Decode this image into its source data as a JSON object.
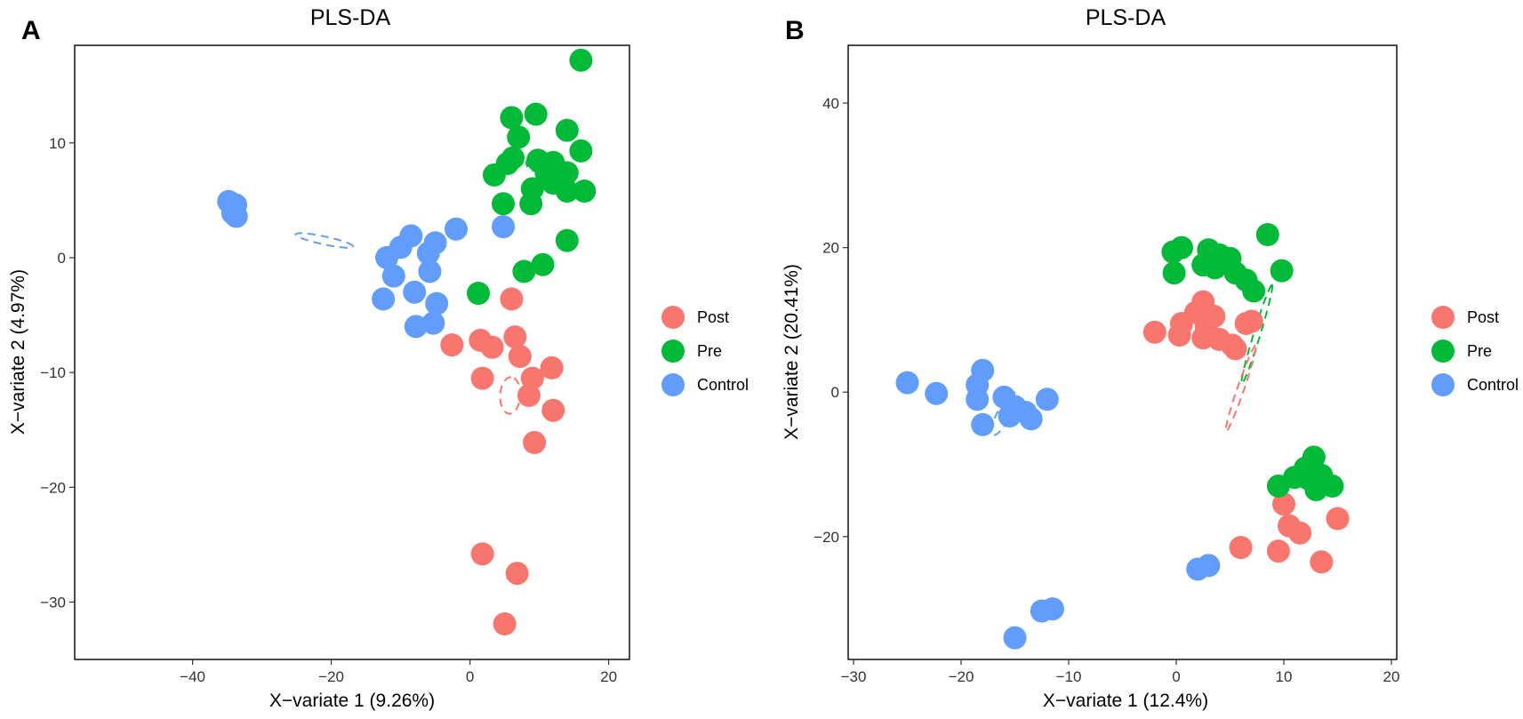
{
  "chart_data": [
    {
      "panel": "A",
      "type": "scatter",
      "title": "PLS-DA",
      "xlabel": "X−variate 1 (9.26%)",
      "ylabel": "X−variate 2 (4.97%)",
      "xlim": [
        -57,
        23
      ],
      "ylim": [
        -35,
        18.5
      ],
      "xticks": [
        -40,
        -20,
        0,
        20
      ],
      "yticks": [
        -30,
        -20,
        -10,
        0,
        10
      ],
      "grid": false,
      "legend_position": "right",
      "series": [
        {
          "name": "Post",
          "color": "#F8766D",
          "points": [
            [
              6,
              -3.6
            ],
            [
              -2.6,
              -7.6
            ],
            [
              1.5,
              -7.2
            ],
            [
              3.2,
              -7.8
            ],
            [
              6.5,
              -6.9
            ],
            [
              7.2,
              -8.6
            ],
            [
              11.8,
              -9.6
            ],
            [
              9,
              -10.5
            ],
            [
              1.8,
              -10.5
            ],
            [
              8.5,
              -12
            ],
            [
              12,
              -13.3
            ],
            [
              9.3,
              -16.1
            ],
            [
              1.8,
              -25.8
            ],
            [
              6.8,
              -27.5
            ],
            [
              5,
              -31.9
            ]
          ]
        },
        {
          "name": "Pre",
          "color": "#00BA38",
          "points": [
            [
              16,
              17.2
            ],
            [
              6,
              12.2
            ],
            [
              9.5,
              12.5
            ],
            [
              14,
              11.1
            ],
            [
              7,
              10.5
            ],
            [
              6.2,
              8.7
            ],
            [
              5.4,
              8.2
            ],
            [
              9.8,
              8.5
            ],
            [
              12,
              8.3
            ],
            [
              16,
              9.3
            ],
            [
              14,
              7.4
            ],
            [
              3.5,
              7.2
            ],
            [
              11,
              7.4
            ],
            [
              12,
              6.5
            ],
            [
              9,
              6
            ],
            [
              14,
              5.8
            ],
            [
              16.5,
              5.8
            ],
            [
              4.8,
              4.7
            ],
            [
              8.8,
              4.7
            ],
            [
              14,
              1.5
            ],
            [
              10.5,
              -0.6
            ],
            [
              7.8,
              -1.2
            ],
            [
              1.2,
              -3.1
            ]
          ]
        },
        {
          "name": "Control",
          "color": "#619CFF",
          "points": [
            [
              -34.8,
              4.9
            ],
            [
              -33.8,
              4.6
            ],
            [
              -34.2,
              3.9
            ],
            [
              -33.7,
              3.6
            ],
            [
              -2,
              2.5
            ],
            [
              4.8,
              2.7
            ],
            [
              -8.5,
              1.9
            ],
            [
              -5,
              1.3
            ],
            [
              -10,
              0.9
            ],
            [
              -6,
              0.4
            ],
            [
              -12,
              0
            ],
            [
              -5.8,
              -1.2
            ],
            [
              -11,
              -1.6
            ],
            [
              -8,
              -3
            ],
            [
              -12.5,
              -3.6
            ],
            [
              -4.8,
              -4
            ],
            [
              -5.3,
              -5.7
            ],
            [
              -7.8,
              -6
            ]
          ]
        }
      ],
      "ellipses": [
        {
          "series": "Control",
          "cx": -21,
          "cy": 1.5,
          "rx": 33,
          "ry": 4.5,
          "angle_deg": -12
        },
        {
          "series": "Pre",
          "cx": 10,
          "cy": 8.3,
          "rx": 10.2,
          "ry": 14.6,
          "angle_deg": 95
        },
        {
          "series": "Post",
          "cx": 5.8,
          "cy": -12,
          "rx": 20.6,
          "ry": 11.3,
          "angle_deg": 87
        }
      ]
    },
    {
      "panel": "B",
      "type": "scatter",
      "title": "PLS-DA",
      "xlabel": "X−variate 1 (12.4%)",
      "ylabel": "X−variate 2 (20.41%)",
      "xlim": [
        -30.5,
        20.5
      ],
      "ylim": [
        -37,
        48
      ],
      "xticks": [
        -30,
        -20,
        -10,
        0,
        10,
        20
      ],
      "yticks": [
        -20,
        0,
        20,
        40
      ],
      "grid": false,
      "legend_position": "right",
      "series": [
        {
          "name": "Post",
          "color": "#F8766D",
          "points": [
            [
              2.5,
              12.5
            ],
            [
              1.8,
              11
            ],
            [
              3.5,
              10.5
            ],
            [
              0.5,
              9.5
            ],
            [
              6.5,
              9.5
            ],
            [
              7,
              9.8
            ],
            [
              2.8,
              9
            ],
            [
              -2,
              8.3
            ],
            [
              0.3,
              7.9
            ],
            [
              2.5,
              7.5
            ],
            [
              4,
              7.3
            ],
            [
              5.2,
              6.5
            ],
            [
              5.5,
              6
            ],
            [
              10,
              -15.5
            ],
            [
              15,
              -17.5
            ],
            [
              10.5,
              -18.5
            ],
            [
              11.5,
              -19.5
            ],
            [
              6,
              -21.5
            ],
            [
              9.5,
              -22
            ],
            [
              13.5,
              -23.5
            ]
          ]
        },
        {
          "name": "Pre",
          "color": "#00BA38",
          "points": [
            [
              8.5,
              21.8
            ],
            [
              0.5,
              20
            ],
            [
              -0.3,
              19.4
            ],
            [
              3,
              19.7
            ],
            [
              4,
              19
            ],
            [
              5,
              18.5
            ],
            [
              2.5,
              17.6
            ],
            [
              3.6,
              17.2
            ],
            [
              9.8,
              16.8
            ],
            [
              -0.2,
              16.5
            ],
            [
              5.5,
              16.5
            ],
            [
              6.5,
              15.5
            ],
            [
              7.2,
              14
            ],
            [
              12.8,
              -9
            ],
            [
              12,
              -10.5
            ],
            [
              13.5,
              -11.5
            ],
            [
              11,
              -11.8
            ],
            [
              12.3,
              -12
            ],
            [
              9.5,
              -13
            ],
            [
              14.5,
              -13
            ],
            [
              13,
              -13.5
            ]
          ]
        },
        {
          "name": "Control",
          "color": "#619CFF",
          "points": [
            [
              -18,
              3
            ],
            [
              -25,
              1.3
            ],
            [
              -18.5,
              1
            ],
            [
              -22.3,
              -0.2
            ],
            [
              -16,
              -0.7
            ],
            [
              -12,
              -1
            ],
            [
              -18.5,
              -1
            ],
            [
              -15,
              -2
            ],
            [
              -14,
              -2.8
            ],
            [
              -15.5,
              -3.3
            ],
            [
              -13.5,
              -3.7
            ],
            [
              -18,
              -4.5
            ],
            [
              3,
              -24
            ],
            [
              2,
              -24.5
            ],
            [
              -11.5,
              -30
            ],
            [
              -12.5,
              -30.3
            ],
            [
              -15,
              -34
            ]
          ]
        }
      ],
      "ellipses": [
        {
          "series": "Control",
          "cx": -16,
          "cy": -3,
          "rx": 27,
          "ry": 7.6,
          "angle_deg": 62
        },
        {
          "series": "Pre",
          "cx": 7.5,
          "cy": 8,
          "rx": 58,
          "ry": 3.7,
          "angle_deg": 73
        },
        {
          "series": "Post",
          "cx": 6,
          "cy": 0.5,
          "rx": 51,
          "ry": 3.8,
          "angle_deg": 71
        }
      ]
    }
  ]
}
